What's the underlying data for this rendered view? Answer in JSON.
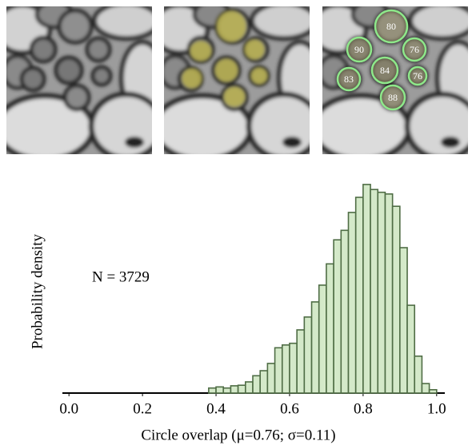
{
  "chart_data": {
    "type": "histogram",
    "xlabel": "Circle overlap (μ=0.76; σ=0.11)",
    "ylabel": "Probability density",
    "annotation": "N = 3729",
    "bins": [
      0.38,
      0.4,
      0.42,
      0.44,
      0.46,
      0.48,
      0.5,
      0.52,
      0.54,
      0.56,
      0.58,
      0.6,
      0.62,
      0.64,
      0.66,
      0.68,
      0.7,
      0.72,
      0.74,
      0.76,
      0.78,
      0.8,
      0.82,
      0.84,
      0.86,
      0.88,
      0.9,
      0.92,
      0.94,
      0.96,
      0.98,
      1.0
    ],
    "values": [
      0.09,
      0.11,
      0.09,
      0.13,
      0.14,
      0.2,
      0.31,
      0.4,
      0.53,
      0.81,
      0.86,
      0.89,
      1.13,
      1.36,
      1.63,
      1.93,
      2.31,
      2.74,
      2.91,
      3.23,
      3.5,
      3.73,
      3.64,
      3.59,
      3.56,
      3.34,
      2.6,
      1.57,
      0.66,
      0.17,
      0.06
    ],
    "color": "#d4e9c9",
    "edge_color": "#4f6d45",
    "xlim": [
      -0.02,
      1.02
    ],
    "ylim": [
      0,
      4
    ],
    "xticks": [
      {
        "value": 0,
        "label": "0.0"
      },
      0.2,
      0.4,
      0.6,
      0.8,
      {
        "value": 1,
        "label": "1.0"
      }
    ]
  },
  "overlay_circles": [
    "80",
    "90",
    "76",
    "84",
    "83",
    "76",
    "88"
  ]
}
